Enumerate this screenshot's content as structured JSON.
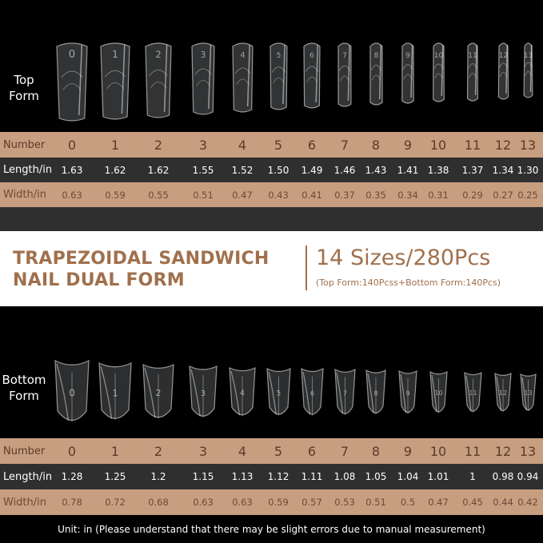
{
  "top": {
    "label_line1": "Top",
    "label_line2": "Form",
    "rows": {
      "number_label": "Number",
      "length_label": "Length/in",
      "width_label": "Width/in"
    },
    "numbers": [
      "0",
      "1",
      "2",
      "3",
      "4",
      "5",
      "6",
      "7",
      "8",
      "9",
      "10",
      "11",
      "12",
      "13"
    ],
    "lengths": [
      "1.63",
      "1.62",
      "1.62",
      "1.55",
      "1.52",
      "1.50",
      "1.49",
      "1.46",
      "1.43",
      "1.41",
      "1.38",
      "1.37",
      "1.34",
      "1.30"
    ],
    "widths": [
      "0.63",
      "0.59",
      "0.55",
      "0.51",
      "0.47",
      "0.43",
      "0.41",
      "0.37",
      "0.35",
      "0.34",
      "0.31",
      "0.29",
      "0.27",
      "0.25"
    ]
  },
  "banner": {
    "title_line1": "TRAPEZOIDAL SANDWICH",
    "title_line2": "NAIL DUAL FORM",
    "sizes": "14 Sizes/280Pcs",
    "detail": "(Top Form:140Pcss+Bottom Form:140Pcs)",
    "accent_color": "#a0704c"
  },
  "bottom": {
    "label_line1": "Bottom",
    "label_line2": "Form",
    "rows": {
      "number_label": "Number",
      "length_label": "Length/in",
      "width_label": "Width/in"
    },
    "numbers": [
      "0",
      "1",
      "2",
      "3",
      "4",
      "5",
      "6",
      "7",
      "8",
      "9",
      "10",
      "11",
      "12",
      "13"
    ],
    "lengths": [
      "1.28",
      "1.25",
      "1.2",
      "1.15",
      "1.13",
      "1.12",
      "1.11",
      "1.08",
      "1.05",
      "1.04",
      "1.01",
      "1",
      "0.98",
      "0.94"
    ],
    "widths": [
      "0.78",
      "0.72",
      "0.68",
      "0.63",
      "0.63",
      "0.59",
      "0.57",
      "0.53",
      "0.51",
      "0.5",
      "0.47",
      "0.45",
      "0.44",
      "0.42"
    ]
  },
  "footer": {
    "note": "Unit: in (Please understand that there may be slight errors due to manual measurement)"
  },
  "colors": {
    "tan_row": "#c89e80",
    "dark_row": "#2f2f2f",
    "background": "#000000"
  }
}
